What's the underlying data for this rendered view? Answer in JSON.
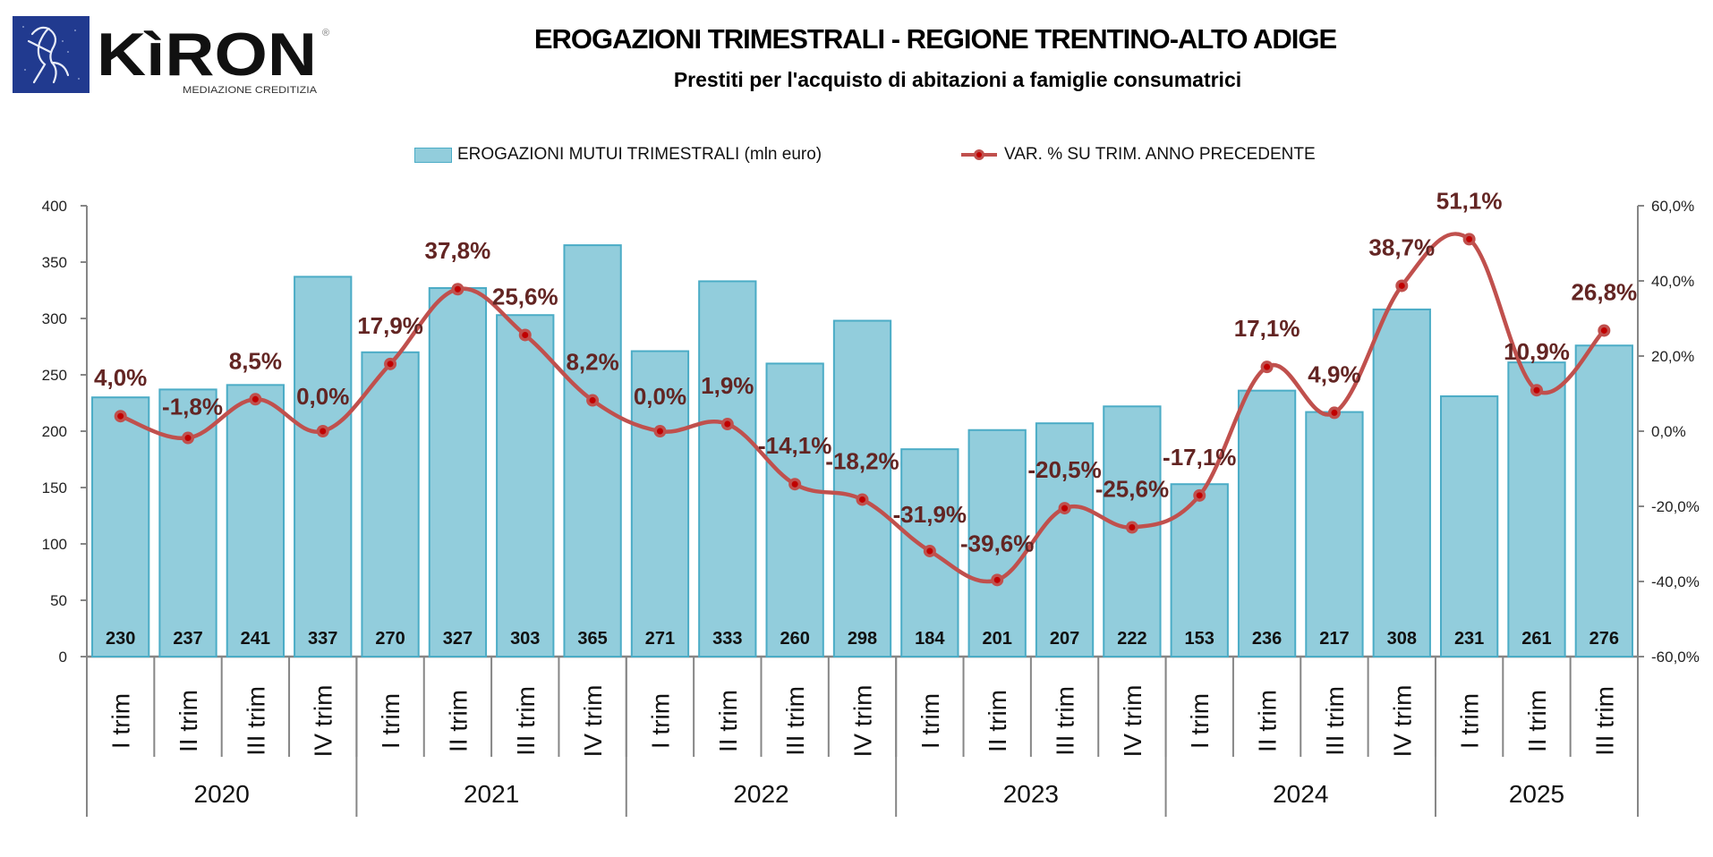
{
  "logo": {
    "brand": "KìRON",
    "tagline": "MEDIAZIONE CREDITIZIA",
    "registered": "®"
  },
  "chart_data": {
    "type": "bar",
    "title": "EROGAZIONI TRIMESTRALI - REGIONE TRENTINO-ALTO ADIGE",
    "subtitle": "Prestiti per l'acquisto di abitazioni a famiglie consumatrici",
    "legend_position": "top",
    "grid": false,
    "years": [
      "2020",
      "2021",
      "2022",
      "2023",
      "2024",
      "2025"
    ],
    "quarters_per_year": [
      4,
      4,
      4,
      4,
      4,
      3
    ],
    "categories": [
      "I trim",
      "II trim",
      "III trim",
      "IV trim",
      "I trim",
      "II trim",
      "III trim",
      "IV trim",
      "I trim",
      "II trim",
      "III trim",
      "IV trim",
      "I trim",
      "II trim",
      "III trim",
      "IV trim",
      "I trim",
      "II trim",
      "III trim",
      "IV trim",
      "I trim",
      "II trim",
      "III trim"
    ],
    "series": [
      {
        "name": "EROGAZIONI MUTUI TRIMESTRALI (mln euro)",
        "type": "bar",
        "axis": "left",
        "color": "#92cddc",
        "border_color": "#4bacc6",
        "values": [
          230,
          237,
          241,
          337,
          270,
          327,
          303,
          365,
          271,
          333,
          260,
          298,
          184,
          201,
          207,
          222,
          153,
          236,
          217,
          308,
          231,
          261,
          276
        ],
        "labels": [
          "230",
          "237",
          "241",
          "337",
          "270",
          "327",
          "303",
          "365",
          "271",
          "333",
          "260",
          "298",
          "184",
          "201",
          "207",
          "222",
          "153",
          "236",
          "217",
          "308",
          "231",
          "261",
          "276"
        ]
      },
      {
        "name": "VAR. % SU TRIM. ANNO PRECEDENTE",
        "type": "line",
        "axis": "right",
        "color": "#c0504d",
        "marker_color": "#c00000",
        "label_color": "#632523",
        "values": [
          4.0,
          -1.8,
          8.5,
          0.0,
          17.9,
          37.8,
          25.6,
          8.2,
          0.0,
          1.9,
          -14.1,
          -18.2,
          -31.9,
          -39.6,
          -20.5,
          -25.6,
          -17.1,
          17.1,
          4.9,
          38.7,
          51.1,
          10.9,
          26.8
        ],
        "labels": [
          "4,0%",
          "-1,8%",
          "8,5%",
          "0,0%",
          "17,9%",
          "37,8%",
          "25,6%",
          "8,2%",
          "0,0%",
          "1,9%",
          "-14,1%",
          "-18,2%",
          "-31,9%",
          "-39,6%",
          "-20,5%",
          "-25,6%",
          "-17,1%",
          "17,1%",
          "4,9%",
          "38,7%",
          "51,1%",
          "10,9%",
          "26,8%"
        ]
      }
    ],
    "y_left": {
      "min": 0,
      "max": 400,
      "ticks": [
        "0",
        "50",
        "100",
        "150",
        "200",
        "250",
        "300",
        "350",
        "400"
      ]
    },
    "y_right": {
      "min": -60,
      "max": 60,
      "ticks": [
        "-60,0%",
        "-40,0%",
        "-20,0%",
        "0,0%",
        "20,0%",
        "40,0%",
        "60,0%"
      ]
    },
    "xlabel": "",
    "ylabel": ""
  }
}
